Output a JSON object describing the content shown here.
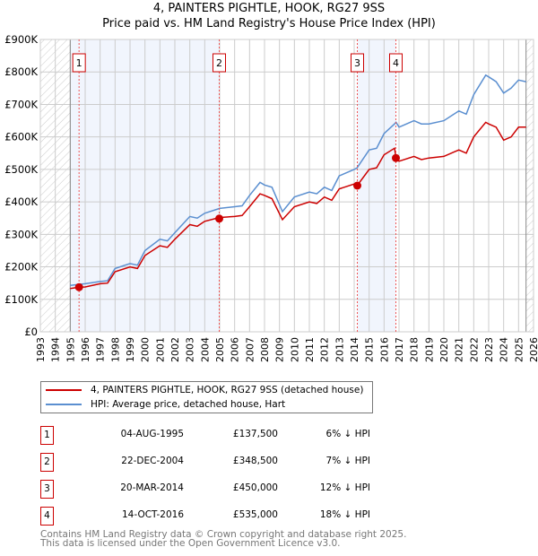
{
  "header": {
    "title": "4, PAINTERS PIGHTLE, HOOK, RG27 9SS",
    "subtitle": "Price paid vs. HM Land Registry's House Price Index (HPI)"
  },
  "chart_data": {
    "type": "line",
    "xlim": [
      1993,
      2026
    ],
    "ylim": [
      0,
      900000
    ],
    "yticks": [
      0,
      100000,
      200000,
      300000,
      400000,
      500000,
      600000,
      700000,
      800000,
      900000
    ],
    "ytick_labels": [
      "£0",
      "£100K",
      "£200K",
      "£300K",
      "£400K",
      "£500K",
      "£600K",
      "£700K",
      "£800K",
      "£900K"
    ],
    "xticks": [
      1993,
      1994,
      1995,
      1996,
      1997,
      1998,
      1999,
      2000,
      2001,
      2002,
      2003,
      2004,
      2005,
      2006,
      2007,
      2008,
      2009,
      2010,
      2011,
      2012,
      2013,
      2014,
      2015,
      2016,
      2017,
      2018,
      2019,
      2020,
      2021,
      2022,
      2023,
      2024,
      2025,
      2026
    ],
    "grid": true,
    "data_range": [
      1995,
      2025.5
    ],
    "shaded_ranges": [
      [
        1995,
        2004.97
      ],
      [
        2014.21,
        2016.79
      ]
    ],
    "series": [
      {
        "name": "4, PAINTERS PIGHTLE, HOOK, RG27 9SS (detached house)",
        "color": "#cc0000",
        "x": [
          1995.0,
          1995.6,
          1996,
          1997,
          1997.5,
          1998,
          1999,
          1999.5,
          2000,
          2001,
          2001.5,
          2002,
          2003,
          2003.5,
          2004,
          2005,
          2006,
          2006.5,
          2007,
          2007.7,
          2008,
          2008.5,
          2009.2,
          2010,
          2011,
          2011.5,
          2012,
          2012.5,
          2013,
          2014,
          2014.2,
          2015,
          2015.5,
          2016,
          2016.7,
          2016.8,
          2017,
          2018,
          2018.5,
          2019,
          2020,
          2021,
          2021.5,
          2022,
          2022.8,
          2023,
          2023.5,
          2024,
          2024.5,
          2025,
          2025.5
        ],
        "y": [
          133000,
          137500,
          138000,
          148000,
          150000,
          185000,
          200000,
          195000,
          235000,
          265000,
          260000,
          285000,
          330000,
          325000,
          340000,
          352000,
          355000,
          358000,
          385000,
          425000,
          420000,
          410000,
          345000,
          385000,
          400000,
          395000,
          415000,
          405000,
          440000,
          455000,
          450000,
          500000,
          505000,
          545000,
          565000,
          535000,
          525000,
          540000,
          530000,
          535000,
          540000,
          560000,
          550000,
          600000,
          645000,
          640000,
          630000,
          590000,
          600000,
          630000,
          630000
        ]
      },
      {
        "name": "HPI: Average price, detached house, Hart",
        "color": "#5b8fd0",
        "x": [
          1995.0,
          1995.6,
          1996,
          1997,
          1997.5,
          1998,
          1999,
          1999.5,
          2000,
          2001,
          2001.5,
          2002,
          2003,
          2003.5,
          2004,
          2005,
          2006,
          2006.5,
          2007,
          2007.7,
          2008,
          2008.5,
          2009.2,
          2010,
          2011,
          2011.5,
          2012,
          2012.5,
          2013,
          2014,
          2014.2,
          2015,
          2015.5,
          2016,
          2016.7,
          2016.8,
          2017,
          2018,
          2018.5,
          2019,
          2020,
          2021,
          2021.5,
          2022,
          2022.8,
          2023,
          2023.5,
          2024,
          2024.5,
          2025,
          2025.5
        ],
        "y": [
          143000,
          146000,
          148000,
          155000,
          157000,
          195000,
          210000,
          205000,
          250000,
          285000,
          280000,
          305000,
          355000,
          350000,
          365000,
          380000,
          385000,
          388000,
          420000,
          460000,
          452000,
          445000,
          370000,
          415000,
          430000,
          425000,
          445000,
          435000,
          480000,
          500000,
          505000,
          560000,
          565000,
          610000,
          640000,
          645000,
          630000,
          650000,
          640000,
          640000,
          650000,
          680000,
          670000,
          730000,
          790000,
          785000,
          770000,
          735000,
          750000,
          775000,
          770000
        ]
      }
    ],
    "sales": [
      {
        "label": "1",
        "x": 1995.59,
        "y": 137500
      },
      {
        "label": "2",
        "x": 2004.97,
        "y": 348500
      },
      {
        "label": "3",
        "x": 2014.21,
        "y": 450000
      },
      {
        "label": "4",
        "x": 2016.79,
        "y": 535000
      }
    ]
  },
  "legend": {
    "property": "4, PAINTERS PIGHTLE, HOOK, RG27 9SS (detached house)",
    "hpi": "HPI: Average price, detached house, Hart"
  },
  "transactions": [
    {
      "num": "1",
      "date": "04-AUG-1995",
      "price": "£137,500",
      "hpi": "6% ↓ HPI"
    },
    {
      "num": "2",
      "date": "22-DEC-2004",
      "price": "£348,500",
      "hpi": "7% ↓ HPI"
    },
    {
      "num": "3",
      "date": "20-MAR-2014",
      "price": "£450,000",
      "hpi": "12% ↓ HPI"
    },
    {
      "num": "4",
      "date": "14-OCT-2016",
      "price": "£535,000",
      "hpi": "18% ↓ HPI"
    }
  ],
  "footer": {
    "line1": "Contains HM Land Registry data © Crown copyright and database right 2025.",
    "line2": "This data is licensed under the Open Government Licence v3.0."
  }
}
